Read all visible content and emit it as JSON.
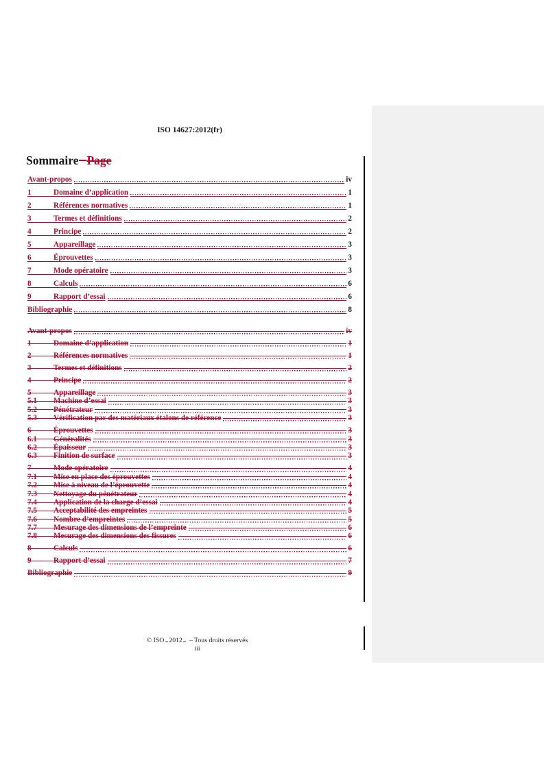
{
  "colors": {
    "change_red": "#b2092f",
    "text_black": "#1a1a1a",
    "sidebar_gray": "#f1f1f2"
  },
  "header": {
    "reference": "ISO 14627:2012(fr)"
  },
  "heading": {
    "title": "Sommaire",
    "deleted_word": "Page"
  },
  "toc_inserted": {
    "entries": [
      {
        "num": "",
        "title": "Avant-propos",
        "page": "iv"
      },
      {
        "num": "1",
        "title": "Domaine d’application",
        "page": "1"
      },
      {
        "num": "2",
        "title": "Références normatives",
        "page": "1"
      },
      {
        "num": "3",
        "title": "Termes et définitions",
        "page": "2"
      },
      {
        "num": "4",
        "title": "Principe",
        "page": "2"
      },
      {
        "num": "5",
        "title": "Appareillage",
        "page": "3"
      },
      {
        "num": "6",
        "title": "Éprouvettes",
        "page": "3"
      },
      {
        "num": "7",
        "title": "Mode opératoire",
        "page": "3"
      },
      {
        "num": "8",
        "title": "Calculs",
        "page": "6"
      },
      {
        "num": "9",
        "title": "Rapport d’essai",
        "page": "6"
      },
      {
        "num": "",
        "title": "Bibliographie",
        "page": "8"
      }
    ]
  },
  "toc_deleted": {
    "entries": [
      {
        "num": "",
        "title": "Avant-propos",
        "page": "iv",
        "level": 1
      },
      {
        "num": "1",
        "title": "Domaine d’application",
        "page": "1",
        "level": 1
      },
      {
        "num": "2",
        "title": "Références normatives",
        "page": "1",
        "level": 1
      },
      {
        "num": "3",
        "title": "Termes et définitions",
        "page": "2",
        "level": 1
      },
      {
        "num": "4",
        "title": "Principe",
        "page": "2",
        "level": 1
      },
      {
        "num": "5",
        "title": "Appareillage",
        "page": "3",
        "level": 1
      },
      {
        "num": "5.1",
        "title": "Machine d’essai",
        "page": "3",
        "level": 2
      },
      {
        "num": "5.2",
        "title": "Pénétrateur",
        "page": "3",
        "level": 2
      },
      {
        "num": "5.3",
        "title": "Vérification par des matériaux étalons de référence",
        "page": "3",
        "level": 2
      },
      {
        "num": "6",
        "title": "Éprouvettes",
        "page": "3",
        "level": 1
      },
      {
        "num": "6.1",
        "title": "Généralités",
        "page": "3",
        "level": 2
      },
      {
        "num": "6.2",
        "title": "Épaisseur",
        "page": "3",
        "level": 2
      },
      {
        "num": "6.3",
        "title": "Finition de surface",
        "page": "3",
        "level": 2
      },
      {
        "num": "7",
        "title": "Mode opératoire",
        "page": "4",
        "level": 1
      },
      {
        "num": "7.1",
        "title": "Mise en place des éprouvettes",
        "page": "4",
        "level": 2
      },
      {
        "num": "7.2",
        "title": "Mise à niveau de l’éprouvette",
        "page": "4",
        "level": 2
      },
      {
        "num": "7.3",
        "title": "Nettoyage du pénétrateur",
        "page": "4",
        "level": 2
      },
      {
        "num": "7.4",
        "title": "Application de la charge d’essai",
        "page": "4",
        "level": 2
      },
      {
        "num": "7.5",
        "title": "Acceptabilité des empreintes",
        "page": "5",
        "level": 2
      },
      {
        "num": "7.6",
        "title": "Nombre d’empreintes",
        "page": "5",
        "level": 2
      },
      {
        "num": "7.7",
        "title": "Mesurage des dimensions de l’empreinte",
        "page": "6",
        "level": 2
      },
      {
        "num": "7.8",
        "title": "Mesurage des dimensions des fissures",
        "page": "6",
        "level": 2
      },
      {
        "num": "8",
        "title": "Calculs",
        "page": "6",
        "level": 1
      },
      {
        "num": "9",
        "title": "Rapport d’essai",
        "page": "7",
        "level": 1
      },
      {
        "num": "",
        "title": "Bibliographie",
        "page": "9",
        "level": 1
      }
    ]
  },
  "footer": {
    "copyright_prefix": "© ISO",
    "copyright_year": "2012",
    "copyright_suffix": "– Tous droits réservés",
    "page_number": "iii"
  }
}
